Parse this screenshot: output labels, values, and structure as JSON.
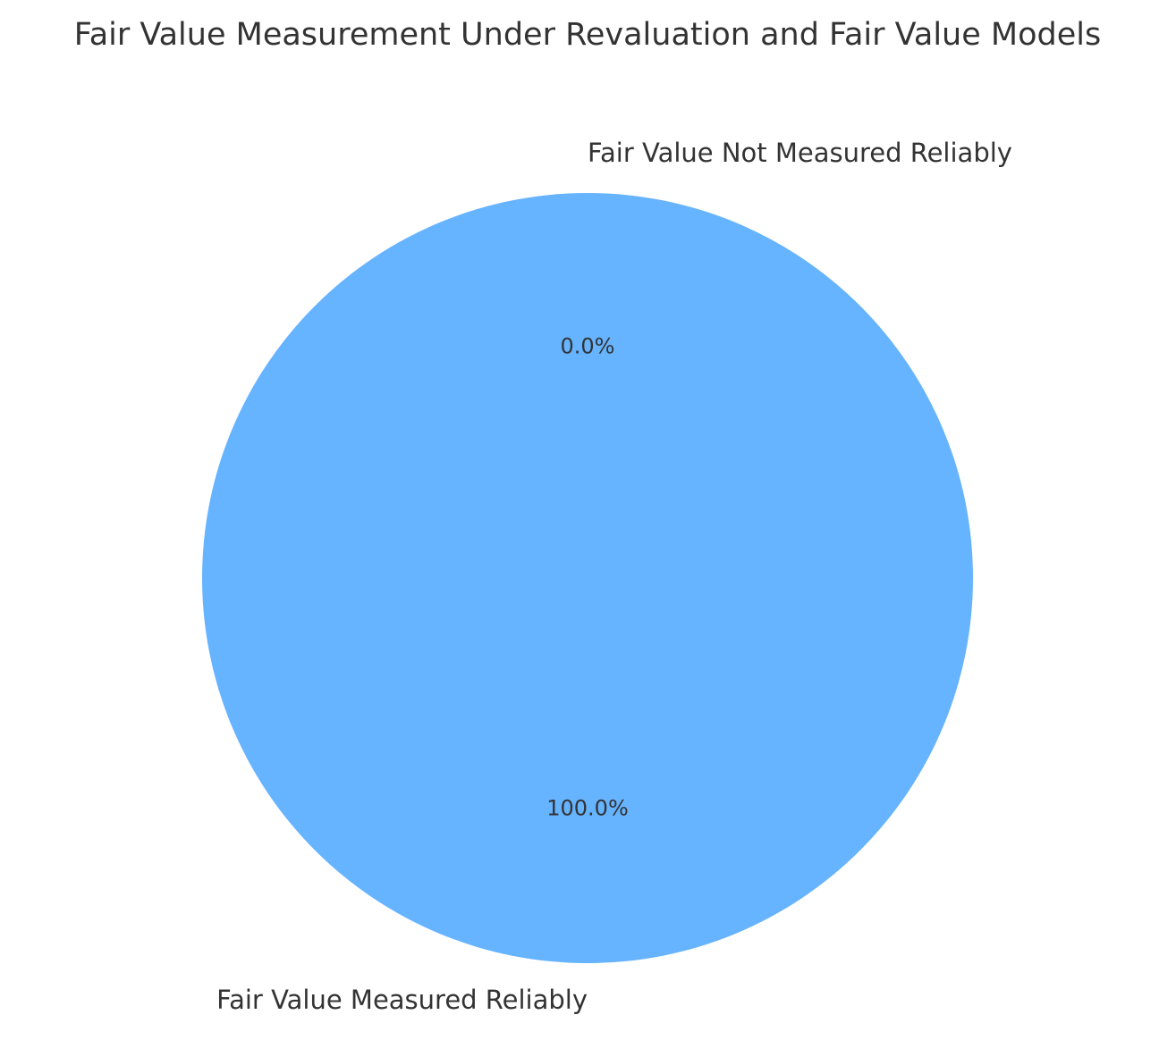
{
  "chart_data": {
    "type": "pie",
    "title": "Fair Value Measurement Under Revaluation and Fair Value Models",
    "slices": [
      {
        "label": "Fair Value Measured Reliably",
        "value": 100.0,
        "percent_label": "100.0%",
        "color": "#66b3ff"
      },
      {
        "label": "Fair Value Not Measured Reliably",
        "value": 0.0,
        "percent_label": "0.0%",
        "color": "#ff9999"
      }
    ],
    "start_angle_deg": 90,
    "direction": "counterclockwise",
    "legend": "none"
  }
}
